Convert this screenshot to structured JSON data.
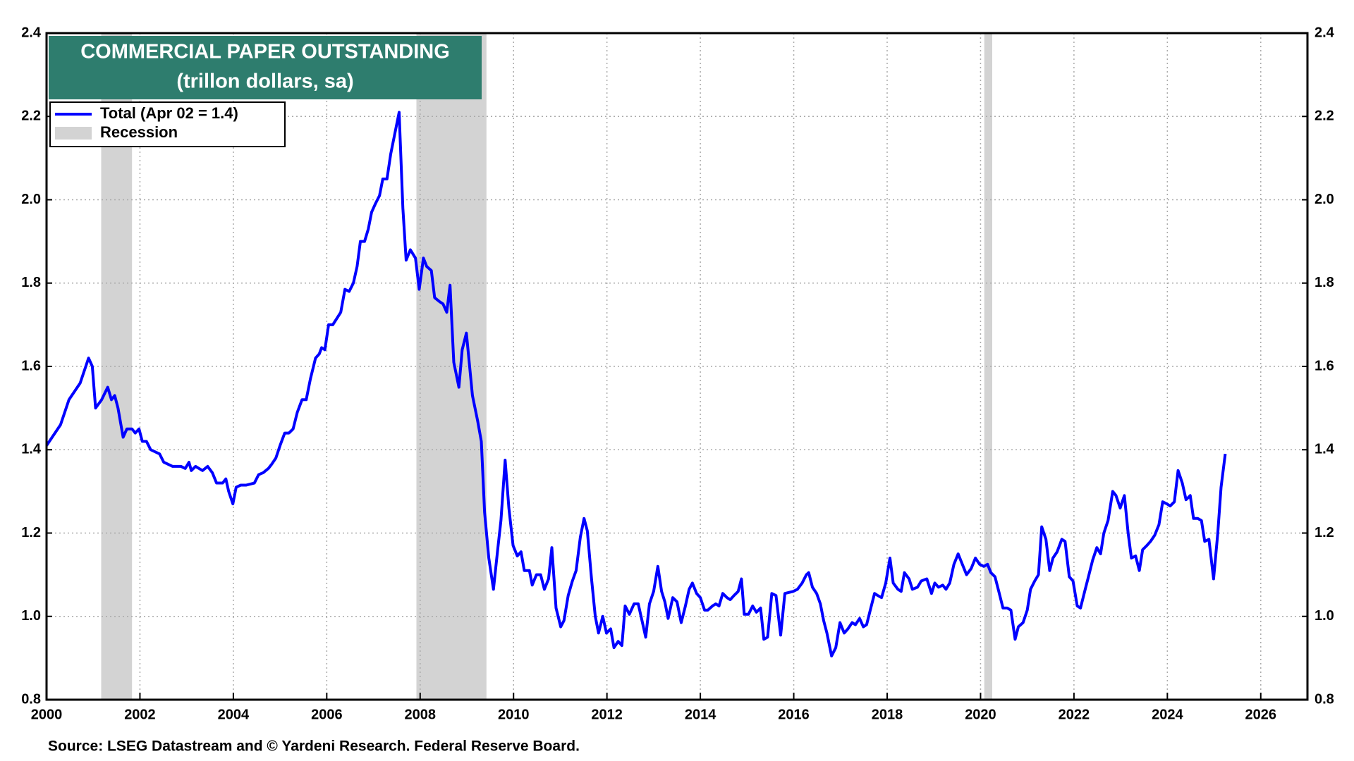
{
  "chart_data": {
    "type": "line",
    "title": "COMMERCIAL PAPER OUTSTANDING",
    "subtitle": "(trillon dollars, sa)",
    "source": "Source: LSEG Datastream and © Yardeni Research. Federal Reserve Board.",
    "xlim": [
      2000,
      2027
    ],
    "xticks": [
      2000,
      2002,
      2004,
      2006,
      2008,
      2010,
      2012,
      2014,
      2016,
      2018,
      2020,
      2022,
      2024,
      2026
    ],
    "ylim": [
      0.8,
      2.4
    ],
    "yticks": [
      0.8,
      {
        "value": 1,
        "label": "1.0"
      },
      1.2,
      1.4,
      1.6,
      1.8,
      {
        "value": 2,
        "label": "2.0"
      },
      2.2,
      2.4
    ],
    "grid": true,
    "legend": "upper left",
    "recession": {
      "name": "Recession",
      "color": "#d3d3d3",
      "periods": [
        [
          2001.17,
          2001.83
        ],
        [
          2007.92,
          2009.42
        ],
        [
          2020.08,
          2020.25
        ]
      ]
    },
    "x": [
      2000.0,
      2000.3,
      2000.48,
      2000.72,
      2000.9,
      2000.98,
      2001.05,
      2001.18,
      2001.31,
      2001.39,
      2001.46,
      2001.53,
      2001.64,
      2001.72,
      2001.83,
      2001.9,
      2001.98,
      2002.05,
      2002.14,
      2002.23,
      2002.42,
      2002.51,
      2002.7,
      2002.88,
      2002.97,
      2003.05,
      2003.1,
      2003.19,
      2003.34,
      2003.45,
      2003.55,
      2003.64,
      2003.77,
      2003.84,
      2003.9,
      2003.99,
      2004.06,
      2004.16,
      2004.27,
      2004.45,
      2004.54,
      2004.64,
      2004.75,
      2004.82,
      2004.91,
      2005.0,
      2005.1,
      2005.19,
      2005.28,
      2005.37,
      2005.47,
      2005.56,
      2005.65,
      2005.76,
      2005.84,
      2005.89,
      2005.96,
      2006.04,
      2006.13,
      2006.3,
      2006.39,
      2006.48,
      2006.57,
      2006.65,
      2006.72,
      2006.81,
      2006.89,
      2006.96,
      2007.04,
      2007.13,
      2007.2,
      2007.29,
      2007.37,
      2007.46,
      2007.55,
      2007.63,
      2007.7,
      2007.79,
      2007.9,
      2007.98,
      2008.07,
      2008.14,
      2008.24,
      2008.31,
      2008.42,
      2008.49,
      2008.57,
      2008.64,
      2008.72,
      2008.83,
      2008.9,
      2008.99,
      2009.12,
      2009.23,
      2009.31,
      2009.38,
      2009.47,
      2009.57,
      2009.66,
      2009.73,
      2009.82,
      2009.9,
      2009.99,
      2010.08,
      2010.16,
      2010.23,
      2010.34,
      2010.4,
      2010.49,
      2010.58,
      2010.66,
      2010.75,
      2010.82,
      2010.91,
      2011.01,
      2011.08,
      2011.17,
      2011.26,
      2011.34,
      2011.43,
      2011.51,
      2011.58,
      2011.67,
      2011.75,
      2011.82,
      2011.91,
      2011.99,
      2012.08,
      2012.15,
      2012.24,
      2012.32,
      2012.39,
      2012.48,
      2012.58,
      2012.67,
      2012.76,
      2012.83,
      2012.91,
      2013.0,
      2013.09,
      2013.17,
      2013.24,
      2013.31,
      2013.41,
      2013.5,
      2013.59,
      2013.68,
      2013.76,
      2013.83,
      2013.92,
      2014.0,
      2014.09,
      2014.16,
      2014.26,
      2014.33,
      2014.4,
      2014.48,
      2014.57,
      2014.64,
      2014.72,
      2014.81,
      2014.88,
      2014.94,
      2015.03,
      2015.12,
      2015.2,
      2015.29,
      2015.36,
      2015.44,
      2015.53,
      2015.62,
      2015.72,
      2015.81,
      2015.99,
      2016.08,
      2016.18,
      2016.27,
      2016.32,
      2016.4,
      2016.49,
      2016.57,
      2016.64,
      2016.71,
      2016.81,
      2016.9,
      2016.99,
      2017.08,
      2017.16,
      2017.25,
      2017.32,
      2017.41,
      2017.49,
      2017.56,
      2017.65,
      2017.73,
      2017.8,
      2017.88,
      2017.97,
      2018.06,
      2018.13,
      2018.23,
      2018.3,
      2018.37,
      2018.47,
      2018.54,
      2018.65,
      2018.73,
      2018.85,
      2018.95,
      2019.02,
      2019.1,
      2019.19,
      2019.26,
      2019.34,
      2019.43,
      2019.52,
      2019.61,
      2019.7,
      2019.8,
      2019.89,
      2019.98,
      2020.07,
      2020.15,
      2020.22,
      2020.31,
      2020.39,
      2020.48,
      2020.57,
      2020.65,
      2020.74,
      2020.81,
      2020.91,
      2021.0,
      2021.07,
      2021.16,
      2021.24,
      2021.31,
      2021.4,
      2021.48,
      2021.55,
      2021.64,
      2021.74,
      2021.81,
      2021.9,
      2021.98,
      2022.07,
      2022.14,
      2022.23,
      2022.31,
      2022.4,
      2022.49,
      2022.57,
      2022.64,
      2022.73,
      2022.83,
      2022.9,
      2022.99,
      2023.08,
      2023.16,
      2023.23,
      2023.32,
      2023.4,
      2023.47,
      2023.56,
      2023.64,
      2023.73,
      2023.82,
      2023.9,
      2023.99,
      2024.06,
      2024.15,
      2024.23,
      2024.32,
      2024.4,
      2024.49,
      2024.56,
      2024.65,
      2024.73,
      2024.8,
      2024.89,
      2024.99,
      2025.08,
      2025.15,
      2025.24
    ],
    "series": [
      {
        "name": "Total  (Apr 02 = 1.4)",
        "color": "#0000ff",
        "values": [
          1.41,
          1.46,
          1.52,
          1.56,
          1.62,
          1.6,
          1.5,
          1.52,
          1.55,
          1.52,
          1.53,
          1.5,
          1.43,
          1.45,
          1.45,
          1.44,
          1.45,
          1.42,
          1.42,
          1.4,
          1.39,
          1.37,
          1.36,
          1.36,
          1.355,
          1.37,
          1.35,
          1.36,
          1.35,
          1.36,
          1.345,
          1.32,
          1.32,
          1.33,
          1.3,
          1.27,
          1.31,
          1.315,
          1.315,
          1.32,
          1.34,
          1.345,
          1.355,
          1.365,
          1.38,
          1.41,
          1.44,
          1.44,
          1.45,
          1.49,
          1.52,
          1.52,
          1.57,
          1.62,
          1.63,
          1.645,
          1.64,
          1.7,
          1.7,
          1.73,
          1.785,
          1.78,
          1.8,
          1.84,
          1.9,
          1.9,
          1.93,
          1.97,
          1.99,
          2.01,
          2.05,
          2.05,
          2.11,
          2.16,
          2.21,
          1.98,
          1.855,
          1.88,
          1.86,
          1.785,
          1.86,
          1.84,
          1.83,
          1.765,
          1.755,
          1.75,
          1.73,
          1.795,
          1.61,
          1.55,
          1.64,
          1.68,
          1.53,
          1.47,
          1.42,
          1.25,
          1.14,
          1.065,
          1.16,
          1.23,
          1.375,
          1.26,
          1.17,
          1.145,
          1.155,
          1.11,
          1.11,
          1.075,
          1.1,
          1.1,
          1.065,
          1.09,
          1.165,
          1.02,
          0.975,
          0.99,
          1.05,
          1.085,
          1.11,
          1.19,
          1.235,
          1.205,
          1.09,
          1.0,
          0.96,
          1.0,
          0.96,
          0.97,
          0.925,
          0.94,
          0.93,
          1.025,
          1.005,
          1.03,
          1.03,
          0.985,
          0.95,
          1.03,
          1.06,
          1.12,
          1.06,
          1.035,
          0.995,
          1.045,
          1.035,
          0.985,
          1.025,
          1.065,
          1.08,
          1.055,
          1.045,
          1.015,
          1.015,
          1.025,
          1.03,
          1.025,
          1.055,
          1.045,
          1.04,
          1.05,
          1.06,
          1.09,
          1.005,
          1.005,
          1.025,
          1.01,
          1.02,
          0.945,
          0.95,
          1.055,
          1.05,
          0.955,
          1.055,
          1.06,
          1.065,
          1.08,
          1.1,
          1.105,
          1.07,
          1.055,
          1.03,
          0.99,
          0.96,
          0.905,
          0.925,
          0.985,
          0.96,
          0.97,
          0.985,
          0.98,
          0.995,
          0.975,
          0.98,
          1.02,
          1.055,
          1.05,
          1.045,
          1.08,
          1.14,
          1.08,
          1.065,
          1.06,
          1.105,
          1.09,
          1.065,
          1.07,
          1.085,
          1.09,
          1.055,
          1.08,
          1.07,
          1.075,
          1.065,
          1.08,
          1.125,
          1.15,
          1.125,
          1.1,
          1.115,
          1.14,
          1.125,
          1.12,
          1.125,
          1.105,
          1.095,
          1.06,
          1.02,
          1.02,
          1.015,
          0.945,
          0.975,
          0.985,
          1.015,
          1.065,
          1.085,
          1.1,
          1.215,
          1.185,
          1.11,
          1.14,
          1.155,
          1.185,
          1.18,
          1.095,
          1.085,
          1.025,
          1.02,
          1.06,
          1.095,
          1.135,
          1.165,
          1.15,
          1.2,
          1.23,
          1.3,
          1.29,
          1.26,
          1.29,
          1.2,
          1.14,
          1.145,
          1.11,
          1.16,
          1.17,
          1.18,
          1.195,
          1.22,
          1.275,
          1.27,
          1.265,
          1.275,
          1.35,
          1.32,
          1.28,
          1.29,
          1.235,
          1.235,
          1.23,
          1.18,
          1.185,
          1.09,
          1.2,
          1.31,
          1.39
        ]
      }
    ]
  }
}
